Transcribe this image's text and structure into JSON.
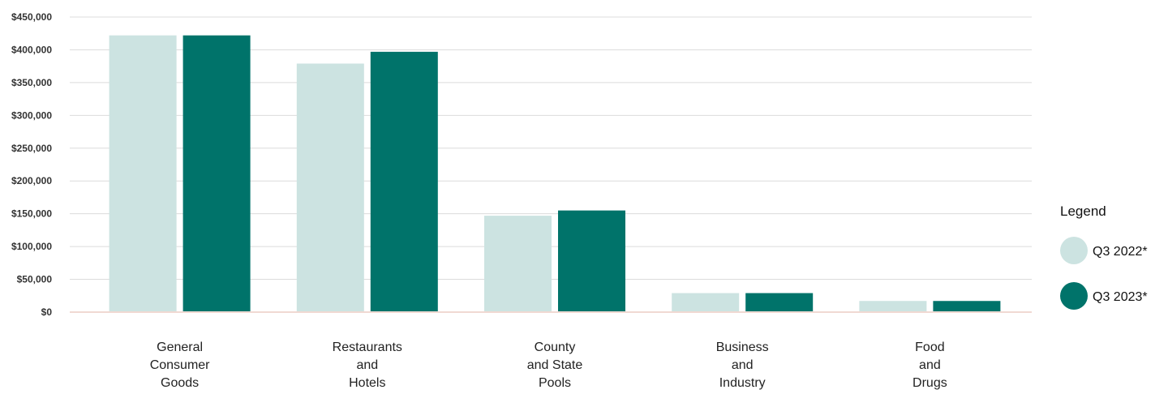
{
  "chart_data": {
    "type": "bar",
    "categories": [
      [
        "General",
        "Consumer",
        "Goods"
      ],
      [
        "Restaurants",
        "and",
        "Hotels"
      ],
      [
        "County",
        "and State",
        "Pools"
      ],
      [
        "Business",
        "and",
        "Industry"
      ],
      [
        "Food",
        "and",
        "Drugs"
      ]
    ],
    "series": [
      {
        "name": "Q3 2022*",
        "color": "#cce3e1",
        "values": [
          422000,
          379000,
          147000,
          29000,
          17000
        ]
      },
      {
        "name": "Q3 2023*",
        "color": "#00736a",
        "values": [
          422000,
          397000,
          155000,
          29000,
          17000
        ]
      }
    ],
    "y_ticks": [
      "$0",
      "$50,000",
      "$100,000",
      "$150,000",
      "$200,000",
      "$250,000",
      "$300,000",
      "$350,000",
      "$400,000",
      "$450,000"
    ],
    "ylim": [
      0,
      450000
    ],
    "grid": true,
    "legend": {
      "title": "Legend",
      "placement": "right"
    }
  }
}
